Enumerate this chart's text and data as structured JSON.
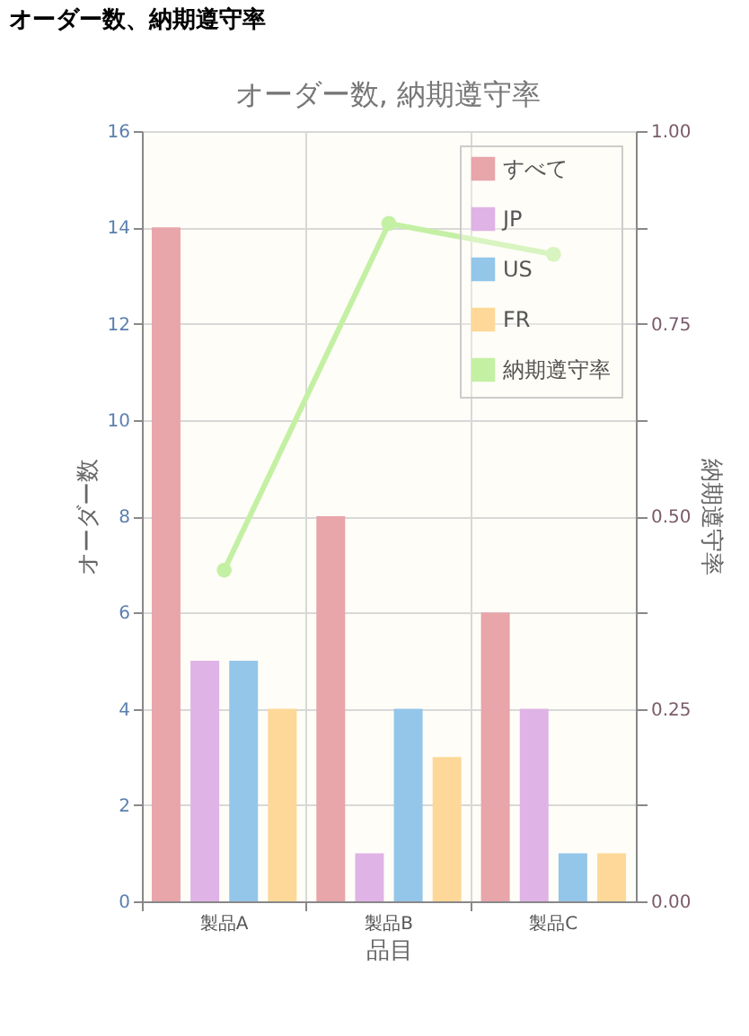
{
  "chart_data": {
    "type": "bar",
    "title": "オーダー数, 納期遵守率",
    "annotations": [
      "オーダー数、納期遵守率"
    ],
    "xlabel": "品目",
    "ylabel": "オーダー数",
    "y2label": "納期遵守率",
    "categories": [
      "製品A",
      "製品B",
      "製品C"
    ],
    "series": [
      {
        "name": "すべて",
        "color": "#e8a5aa",
        "values": [
          14,
          8,
          6
        ]
      },
      {
        "name": "JP",
        "color": "#dfb3e6",
        "values": [
          5,
          1,
          4
        ]
      },
      {
        "name": "US",
        "color": "#94c6ea",
        "values": [
          5,
          4,
          1
        ]
      },
      {
        "name": "FR",
        "color": "#fdd898",
        "values": [
          4,
          3,
          1
        ]
      },
      {
        "name": "納期遵守率",
        "color": "#c4f0a4",
        "type": "line",
        "axis": "y2",
        "marker": "circle",
        "values": [
          0.43,
          0.88,
          0.84
        ]
      }
    ],
    "ylim": [
      0,
      16
    ],
    "yticks": [
      0,
      2,
      4,
      6,
      8,
      10,
      12,
      14,
      16
    ],
    "y2lim": [
      0,
      1
    ],
    "y2ticks": [
      {
        "value": 0,
        "label": "0.00"
      },
      {
        "value": 0.125,
        "label": null
      },
      {
        "value": 0.25,
        "label": "0.25"
      },
      {
        "value": 0.375,
        "label": null
      },
      {
        "value": 0.5,
        "label": "0.50"
      },
      {
        "value": 0.625,
        "label": null
      },
      {
        "value": 0.75,
        "label": "0.75"
      },
      {
        "value": 0.875,
        "label": null
      },
      {
        "value": 1,
        "label": "1.00"
      }
    ],
    "grid": true,
    "legend": "top right"
  }
}
